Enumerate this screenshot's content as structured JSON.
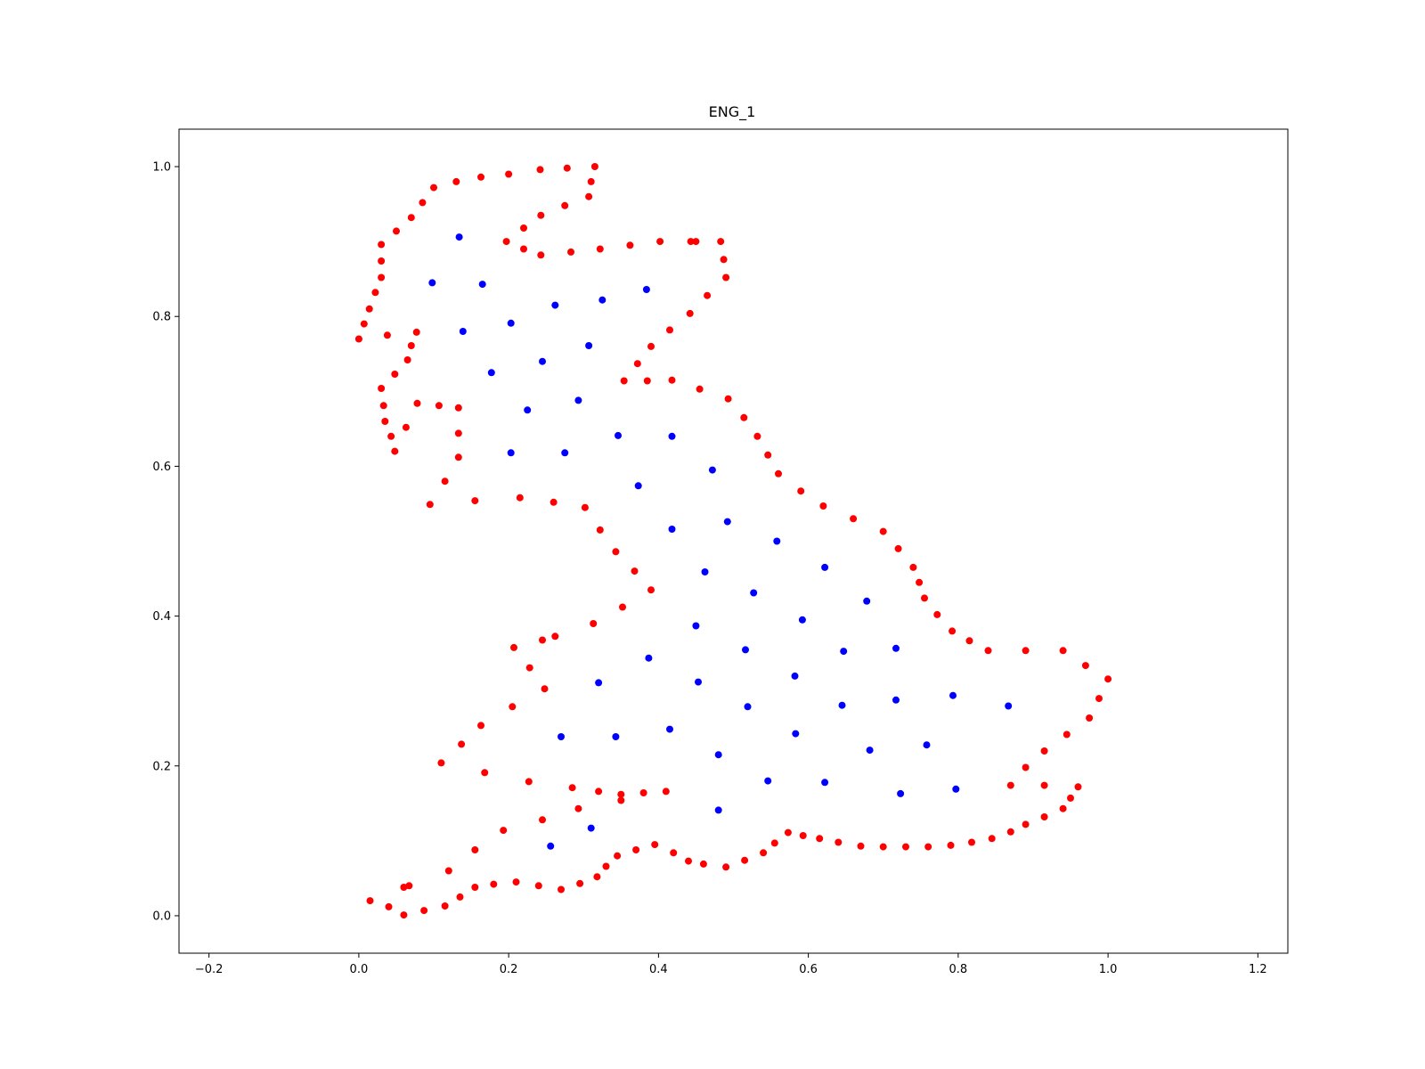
{
  "chart_data": {
    "type": "scatter",
    "title": "ENG_1",
    "xlabel": "",
    "ylabel": "",
    "xlim": [
      -0.24,
      1.24
    ],
    "ylim": [
      -0.05,
      1.05
    ],
    "xticks": [
      "−0.2",
      "0.0",
      "0.2",
      "0.4",
      "0.6",
      "0.8",
      "1.0",
      "1.2"
    ],
    "xtick_values": [
      -0.2,
      0.0,
      0.2,
      0.4,
      0.6,
      0.8,
      1.0,
      1.2
    ],
    "yticks": [
      "0.0",
      "0.2",
      "0.4",
      "0.6",
      "0.8",
      "1.0"
    ],
    "ytick_values": [
      0.0,
      0.2,
      0.4,
      0.6,
      0.8,
      1.0
    ],
    "grid": false,
    "series": [
      {
        "color": "#ff0000",
        "points": [
          [
            0.0,
            0.77
          ],
          [
            0.007,
            0.79
          ],
          [
            0.014,
            0.81
          ],
          [
            0.022,
            0.832
          ],
          [
            0.03,
            0.852
          ],
          [
            0.03,
            0.874
          ],
          [
            0.03,
            0.896
          ],
          [
            0.05,
            0.914
          ],
          [
            0.07,
            0.932
          ],
          [
            0.085,
            0.952
          ],
          [
            0.1,
            0.972
          ],
          [
            0.13,
            0.98
          ],
          [
            0.163,
            0.986
          ],
          [
            0.2,
            0.99
          ],
          [
            0.242,
            0.996
          ],
          [
            0.278,
            0.998
          ],
          [
            0.315,
            1.0
          ],
          [
            0.31,
            0.98
          ],
          [
            0.307,
            0.96
          ],
          [
            0.275,
            0.948
          ],
          [
            0.243,
            0.935
          ],
          [
            0.22,
            0.918
          ],
          [
            0.197,
            0.9
          ],
          [
            0.22,
            0.89
          ],
          [
            0.243,
            0.882
          ],
          [
            0.283,
            0.886
          ],
          [
            0.322,
            0.89
          ],
          [
            0.362,
            0.895
          ],
          [
            0.402,
            0.9
          ],
          [
            0.443,
            0.9
          ],
          [
            0.45,
            0.9
          ],
          [
            0.483,
            0.9
          ],
          [
            0.487,
            0.876
          ],
          [
            0.49,
            0.852
          ],
          [
            0.465,
            0.828
          ],
          [
            0.442,
            0.804
          ],
          [
            0.415,
            0.782
          ],
          [
            0.39,
            0.76
          ],
          [
            0.372,
            0.737
          ],
          [
            0.354,
            0.714
          ],
          [
            0.385,
            0.714
          ],
          [
            0.418,
            0.715
          ],
          [
            0.455,
            0.703
          ],
          [
            0.493,
            0.69
          ],
          [
            0.514,
            0.665
          ],
          [
            0.532,
            0.64
          ],
          [
            0.546,
            0.615
          ],
          [
            0.56,
            0.59
          ],
          [
            0.59,
            0.567
          ],
          [
            0.62,
            0.547
          ],
          [
            0.66,
            0.53
          ],
          [
            0.7,
            0.513
          ],
          [
            0.72,
            0.49
          ],
          [
            0.74,
            0.465
          ],
          [
            0.748,
            0.445
          ],
          [
            0.755,
            0.424
          ],
          [
            0.772,
            0.402
          ],
          [
            0.792,
            0.38
          ],
          [
            0.815,
            0.367
          ],
          [
            0.84,
            0.354
          ],
          [
            0.89,
            0.354
          ],
          [
            0.94,
            0.354
          ],
          [
            0.97,
            0.334
          ],
          [
            1.0,
            0.316
          ],
          [
            0.988,
            0.29
          ],
          [
            0.975,
            0.264
          ],
          [
            0.945,
            0.242
          ],
          [
            0.915,
            0.22
          ],
          [
            0.89,
            0.198
          ],
          [
            0.87,
            0.174
          ],
          [
            0.915,
            0.174
          ],
          [
            0.96,
            0.172
          ],
          [
            0.95,
            0.157
          ],
          [
            0.94,
            0.143
          ],
          [
            0.915,
            0.132
          ],
          [
            0.89,
            0.122
          ],
          [
            0.87,
            0.112
          ],
          [
            0.845,
            0.103
          ],
          [
            0.818,
            0.098
          ],
          [
            0.79,
            0.094
          ],
          [
            0.76,
            0.092
          ],
          [
            0.73,
            0.092
          ],
          [
            0.7,
            0.092
          ],
          [
            0.67,
            0.093
          ],
          [
            0.64,
            0.098
          ],
          [
            0.615,
            0.103
          ],
          [
            0.593,
            0.107
          ],
          [
            0.573,
            0.111
          ],
          [
            0.555,
            0.097
          ],
          [
            0.54,
            0.084
          ],
          [
            0.515,
            0.074
          ],
          [
            0.49,
            0.065
          ],
          [
            0.46,
            0.069
          ],
          [
            0.44,
            0.073
          ],
          [
            0.42,
            0.084
          ],
          [
            0.395,
            0.095
          ],
          [
            0.37,
            0.088
          ],
          [
            0.345,
            0.08
          ],
          [
            0.33,
            0.066
          ],
          [
            0.318,
            0.052
          ],
          [
            0.295,
            0.043
          ],
          [
            0.27,
            0.035
          ],
          [
            0.24,
            0.04
          ],
          [
            0.21,
            0.045
          ],
          [
            0.18,
            0.042
          ],
          [
            0.155,
            0.038
          ],
          [
            0.135,
            0.025
          ],
          [
            0.115,
            0.013
          ],
          [
            0.087,
            0.007
          ],
          [
            0.06,
            0.001
          ],
          [
            0.04,
            0.012
          ],
          [
            0.015,
            0.02
          ],
          [
            0.06,
            0.038
          ],
          [
            0.067,
            0.04
          ],
          [
            0.12,
            0.06
          ],
          [
            0.155,
            0.088
          ],
          [
            0.193,
            0.114
          ],
          [
            0.245,
            0.128
          ],
          [
            0.293,
            0.143
          ],
          [
            0.285,
            0.171
          ],
          [
            0.32,
            0.166
          ],
          [
            0.35,
            0.162
          ],
          [
            0.35,
            0.154
          ],
          [
            0.38,
            0.164
          ],
          [
            0.41,
            0.166
          ],
          [
            0.227,
            0.179
          ],
          [
            0.168,
            0.191
          ],
          [
            0.11,
            0.204
          ],
          [
            0.137,
            0.229
          ],
          [
            0.163,
            0.254
          ],
          [
            0.205,
            0.279
          ],
          [
            0.248,
            0.303
          ],
          [
            0.228,
            0.331
          ],
          [
            0.207,
            0.358
          ],
          [
            0.245,
            0.368
          ],
          [
            0.262,
            0.373
          ],
          [
            0.313,
            0.39
          ],
          [
            0.352,
            0.412
          ],
          [
            0.39,
            0.435
          ],
          [
            0.368,
            0.46
          ],
          [
            0.343,
            0.486
          ],
          [
            0.322,
            0.515
          ],
          [
            0.302,
            0.545
          ],
          [
            0.26,
            0.552
          ],
          [
            0.215,
            0.558
          ],
          [
            0.155,
            0.554
          ],
          [
            0.095,
            0.549
          ],
          [
            0.115,
            0.58
          ],
          [
            0.133,
            0.612
          ],
          [
            0.133,
            0.644
          ],
          [
            0.133,
            0.678
          ],
          [
            0.107,
            0.681
          ],
          [
            0.078,
            0.684
          ],
          [
            0.063,
            0.652
          ],
          [
            0.048,
            0.62
          ],
          [
            0.043,
            0.64
          ],
          [
            0.035,
            0.66
          ],
          [
            0.033,
            0.681
          ],
          [
            0.03,
            0.704
          ],
          [
            0.048,
            0.723
          ],
          [
            0.065,
            0.742
          ],
          [
            0.07,
            0.761
          ],
          [
            0.077,
            0.779
          ],
          [
            0.038,
            0.775
          ]
        ]
      },
      {
        "color": "#0000ff",
        "points": [
          [
            0.134,
            0.906
          ],
          [
            0.098,
            0.845
          ],
          [
            0.165,
            0.843
          ],
          [
            0.262,
            0.815
          ],
          [
            0.325,
            0.822
          ],
          [
            0.384,
            0.836
          ],
          [
            0.139,
            0.78
          ],
          [
            0.203,
            0.791
          ],
          [
            0.307,
            0.761
          ],
          [
            0.245,
            0.74
          ],
          [
            0.177,
            0.725
          ],
          [
            0.225,
            0.675
          ],
          [
            0.293,
            0.688
          ],
          [
            0.346,
            0.641
          ],
          [
            0.418,
            0.64
          ],
          [
            0.203,
            0.618
          ],
          [
            0.275,
            0.618
          ],
          [
            0.472,
            0.595
          ],
          [
            0.373,
            0.574
          ],
          [
            0.418,
            0.516
          ],
          [
            0.492,
            0.526
          ],
          [
            0.558,
            0.5
          ],
          [
            0.462,
            0.459
          ],
          [
            0.622,
            0.465
          ],
          [
            0.527,
            0.431
          ],
          [
            0.678,
            0.42
          ],
          [
            0.592,
            0.395
          ],
          [
            0.45,
            0.387
          ],
          [
            0.516,
            0.355
          ],
          [
            0.647,
            0.353
          ],
          [
            0.717,
            0.357
          ],
          [
            0.387,
            0.344
          ],
          [
            0.32,
            0.311
          ],
          [
            0.453,
            0.312
          ],
          [
            0.582,
            0.32
          ],
          [
            0.519,
            0.279
          ],
          [
            0.645,
            0.281
          ],
          [
            0.717,
            0.288
          ],
          [
            0.793,
            0.294
          ],
          [
            0.867,
            0.28
          ],
          [
            0.27,
            0.239
          ],
          [
            0.343,
            0.239
          ],
          [
            0.415,
            0.249
          ],
          [
            0.583,
            0.243
          ],
          [
            0.682,
            0.221
          ],
          [
            0.758,
            0.228
          ],
          [
            0.48,
            0.215
          ],
          [
            0.546,
            0.18
          ],
          [
            0.622,
            0.178
          ],
          [
            0.723,
            0.163
          ],
          [
            0.797,
            0.169
          ],
          [
            0.48,
            0.141
          ],
          [
            0.31,
            0.117
          ],
          [
            0.256,
            0.093
          ]
        ]
      }
    ]
  }
}
